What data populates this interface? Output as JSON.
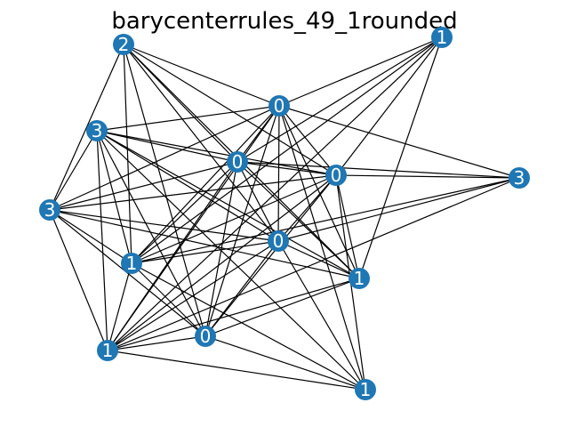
{
  "title": "barycenterrules_49_1rounded",
  "colors": {
    "node": "#1f77b4",
    "edge": "#000000",
    "label": "#ffffff",
    "background": "#ffffff"
  },
  "nodes": [
    {
      "id": "n0",
      "label": "2"
    },
    {
      "id": "n1",
      "label": "1"
    },
    {
      "id": "n2",
      "label": "0"
    },
    {
      "id": "n3",
      "label": "3"
    },
    {
      "id": "n4",
      "label": "0"
    },
    {
      "id": "n5",
      "label": "0"
    },
    {
      "id": "n6",
      "label": "3"
    },
    {
      "id": "n7",
      "label": "3"
    },
    {
      "id": "n8",
      "label": "0"
    },
    {
      "id": "n9",
      "label": "1"
    },
    {
      "id": "n10",
      "label": "1"
    },
    {
      "id": "n11",
      "label": "0"
    },
    {
      "id": "n12",
      "label": "1"
    },
    {
      "id": "n13",
      "label": "1"
    }
  ],
  "edges": [
    [
      "n0",
      "n2"
    ],
    [
      "n0",
      "n4"
    ],
    [
      "n0",
      "n5"
    ],
    [
      "n0",
      "n7"
    ],
    [
      "n0",
      "n8"
    ],
    [
      "n0",
      "n9"
    ],
    [
      "n0",
      "n10"
    ],
    [
      "n0",
      "n11"
    ],
    [
      "n1",
      "n2"
    ],
    [
      "n1",
      "n4"
    ],
    [
      "n1",
      "n5"
    ],
    [
      "n1",
      "n9"
    ],
    [
      "n1",
      "n10"
    ],
    [
      "n1",
      "n12"
    ],
    [
      "n2",
      "n3"
    ],
    [
      "n2",
      "n4"
    ],
    [
      "n2",
      "n5"
    ],
    [
      "n2",
      "n6"
    ],
    [
      "n2",
      "n7"
    ],
    [
      "n2",
      "n8"
    ],
    [
      "n2",
      "n9"
    ],
    [
      "n2",
      "n10"
    ],
    [
      "n2",
      "n11"
    ],
    [
      "n2",
      "n12"
    ],
    [
      "n2",
      "n13"
    ],
    [
      "n3",
      "n4"
    ],
    [
      "n3",
      "n5"
    ],
    [
      "n3",
      "n7"
    ],
    [
      "n3",
      "n8"
    ],
    [
      "n3",
      "n9"
    ],
    [
      "n3",
      "n10"
    ],
    [
      "n3",
      "n11"
    ],
    [
      "n3",
      "n12"
    ],
    [
      "n3",
      "n13"
    ],
    [
      "n4",
      "n5"
    ],
    [
      "n4",
      "n6"
    ],
    [
      "n4",
      "n7"
    ],
    [
      "n4",
      "n8"
    ],
    [
      "n4",
      "n9"
    ],
    [
      "n4",
      "n10"
    ],
    [
      "n4",
      "n11"
    ],
    [
      "n4",
      "n12"
    ],
    [
      "n5",
      "n6"
    ],
    [
      "n5",
      "n7"
    ],
    [
      "n5",
      "n8"
    ],
    [
      "n5",
      "n9"
    ],
    [
      "n5",
      "n10"
    ],
    [
      "n5",
      "n11"
    ],
    [
      "n5",
      "n12"
    ],
    [
      "n5",
      "n13"
    ],
    [
      "n6",
      "n8"
    ],
    [
      "n6",
      "n9"
    ],
    [
      "n6",
      "n12"
    ],
    [
      "n7",
      "n8"
    ],
    [
      "n7",
      "n9"
    ],
    [
      "n7",
      "n10"
    ],
    [
      "n7",
      "n11"
    ],
    [
      "n7",
      "n12"
    ],
    [
      "n8",
      "n9"
    ],
    [
      "n8",
      "n10"
    ],
    [
      "n8",
      "n11"
    ],
    [
      "n8",
      "n12"
    ],
    [
      "n8",
      "n13"
    ],
    [
      "n9",
      "n11"
    ],
    [
      "n9",
      "n12"
    ],
    [
      "n9",
      "n13"
    ],
    [
      "n10",
      "n11"
    ],
    [
      "n10",
      "n12"
    ],
    [
      "n11",
      "n12"
    ],
    [
      "n11",
      "n13"
    ],
    [
      "n12",
      "n13"
    ]
  ]
}
